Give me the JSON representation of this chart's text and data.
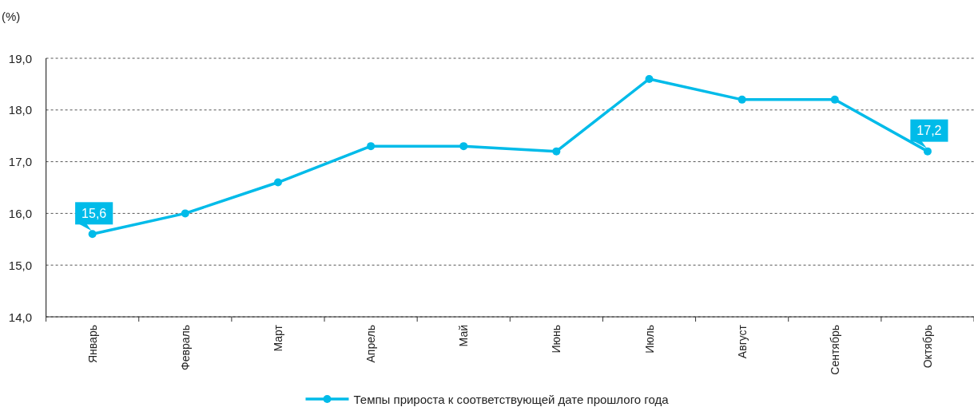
{
  "chart_data": {
    "type": "line",
    "ylabel": "(%)",
    "categories": [
      "Январь",
      "Февраль",
      "Март",
      "Апрель",
      "Май",
      "Июнь",
      "Июль",
      "Август",
      "Сентябрь",
      "Октябрь"
    ],
    "series": [
      {
        "name": "Темпы прироста к соответствующей дате прошлого года",
        "color": "#00bbe9",
        "values": [
          15.6,
          16.0,
          16.6,
          17.3,
          17.3,
          17.2,
          18.6,
          18.2,
          18.2,
          17.2
        ],
        "value_labels": [
          "15,6",
          null,
          null,
          null,
          null,
          null,
          null,
          null,
          null,
          "17,2"
        ]
      }
    ],
    "ylim": [
      14,
      19
    ],
    "yticks": [
      {
        "value": 14,
        "label": "14,0"
      },
      {
        "value": 15,
        "label": "15,0"
      },
      {
        "value": 16,
        "label": "16,0"
      },
      {
        "value": 17,
        "label": "17,0"
      },
      {
        "value": 18,
        "label": "18,0"
      },
      {
        "value": 19,
        "label": "19,0"
      }
    ],
    "grid": "y",
    "legend": "bottom",
    "marker": "circle",
    "line_style": "solid"
  }
}
